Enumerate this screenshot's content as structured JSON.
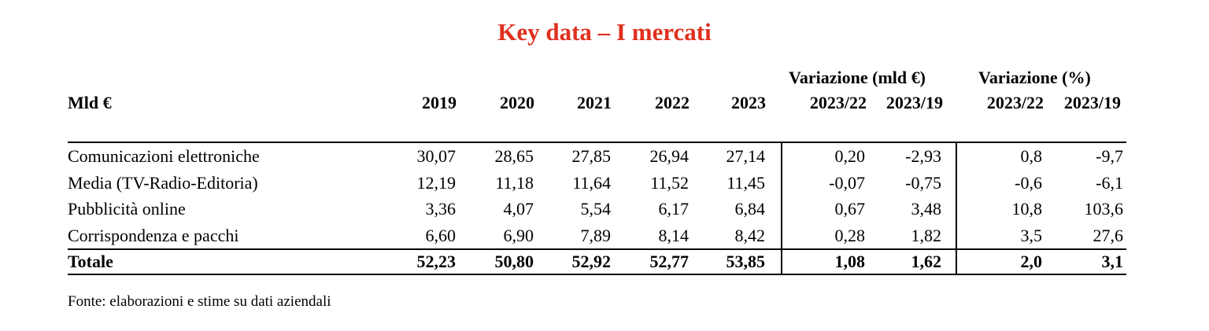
{
  "title": "Key data – I mercati",
  "table": {
    "unit_label": "Mld €",
    "group_headers": [
      "Variazione  (mld €)",
      "Variazione  (%)"
    ],
    "columns": [
      "2019",
      "2020",
      "2021",
      "2022",
      "2023",
      "2023/22",
      "2023/19",
      "2023/22",
      "2023/19"
    ],
    "rows": [
      {
        "label": "Comunicazioni elettroniche",
        "values": [
          "30,07",
          "28,65",
          "27,85",
          "26,94",
          "27,14",
          "0,20",
          "-2,93",
          "0,8",
          "-9,7"
        ]
      },
      {
        "label": "Media (TV-Radio-Editoria)",
        "values": [
          "12,19",
          "11,18",
          "11,64",
          "11,52",
          "11,45",
          "-0,07",
          "-0,75",
          "-0,6",
          "-6,1"
        ]
      },
      {
        "label": "Pubblicità online",
        "values": [
          "3,36",
          "4,07",
          "5,54",
          "6,17",
          "6,84",
          "0,67",
          "3,48",
          "10,8",
          "103,6"
        ]
      },
      {
        "label": "Corrispondenza e pacchi",
        "values": [
          "6,60",
          "6,90",
          "7,89",
          "8,14",
          "8,42",
          "0,28",
          "1,82",
          "3,5",
          "27,6"
        ]
      },
      {
        "label": "Totale",
        "values": [
          "52,23",
          "50,80",
          "52,92",
          "52,77",
          "53,85",
          "1,08",
          "1,62",
          "2,0",
          "3,1"
        ],
        "bold": true
      }
    ]
  },
  "source": "Fonte: elaborazioni e stime su dati aziendali"
}
